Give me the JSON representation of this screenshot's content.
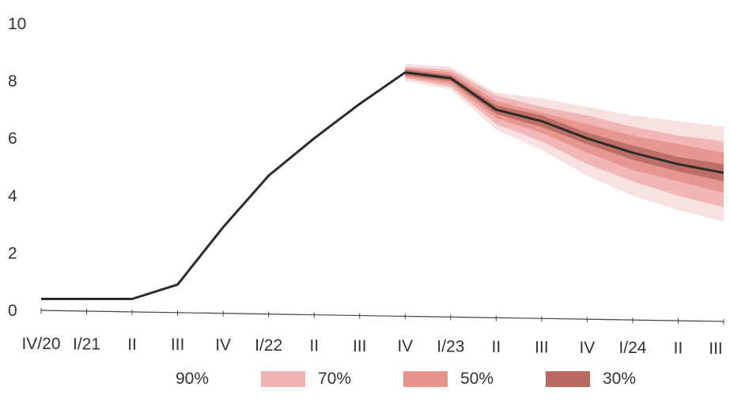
{
  "chart_data": {
    "type": "area",
    "title": "",
    "xlabel": "",
    "ylabel": "",
    "ylim": [
      0,
      10
    ],
    "yticks": [
      "0",
      "2",
      "4",
      "6",
      "8",
      "10"
    ],
    "x_tick_labels": [
      "IV/20",
      "I/21",
      "II",
      "III",
      "IV",
      "I/22",
      "II",
      "III",
      "IV",
      "I/23",
      "II",
      "III",
      "IV",
      "I/24",
      "II",
      "III"
    ],
    "series": [
      {
        "name": "",
        "values": [
          0.4,
          0.4,
          0.4,
          0.9,
          2.9,
          4.7,
          6.0,
          7.2,
          8.3,
          8.1,
          7.0,
          6.6,
          6.0,
          5.5,
          5.1,
          4.8
        ]
      }
    ],
    "fan_start_index": 8,
    "fan_bands": [
      {
        "label": "90%",
        "lower": [
          null,
          null,
          null,
          null,
          null,
          null,
          null,
          null,
          8.0,
          7.7,
          6.3,
          5.6,
          4.7,
          4.0,
          3.5,
          3.1
        ],
        "upper": [
          null,
          null,
          null,
          null,
          null,
          null,
          null,
          null,
          8.6,
          8.5,
          7.6,
          7.4,
          7.1,
          6.8,
          6.6,
          6.4
        ]
      },
      {
        "label": "70%",
        "lower": [
          null,
          null,
          null,
          null,
          null,
          null,
          null,
          null,
          8.1,
          7.8,
          6.5,
          5.9,
          5.1,
          4.5,
          4.0,
          3.6
        ],
        "upper": [
          null,
          null,
          null,
          null,
          null,
          null,
          null,
          null,
          8.5,
          8.4,
          7.5,
          7.1,
          6.8,
          6.4,
          6.1,
          5.9
        ]
      },
      {
        "label": "50%",
        "lower": [
          null,
          null,
          null,
          null,
          null,
          null,
          null,
          null,
          8.15,
          7.9,
          6.7,
          6.2,
          5.5,
          4.9,
          4.5,
          4.1
        ],
        "upper": [
          null,
          null,
          null,
          null,
          null,
          null,
          null,
          null,
          8.45,
          8.3,
          7.3,
          6.9,
          6.5,
          6.1,
          5.8,
          5.5
        ]
      },
      {
        "label": "30%",
        "lower": [
          null,
          null,
          null,
          null,
          null,
          null,
          null,
          null,
          8.2,
          8.0,
          6.85,
          6.4,
          5.8,
          5.25,
          4.85,
          4.5
        ],
        "upper": [
          null,
          null,
          null,
          null,
          null,
          null,
          null,
          null,
          8.4,
          8.2,
          7.15,
          6.8,
          6.2,
          5.75,
          5.35,
          5.1
        ]
      }
    ],
    "legend": [
      {
        "label": "90%",
        "color": "#f7dcdc"
      },
      {
        "label": "70%",
        "color": "#f0b2b2"
      },
      {
        "label": "50%",
        "color": "#e7928d"
      },
      {
        "label": "30%",
        "color": "#b86a60"
      }
    ],
    "colors": {
      "line": "#2b2b2b",
      "axis": "#444444"
    },
    "grid": false
  }
}
